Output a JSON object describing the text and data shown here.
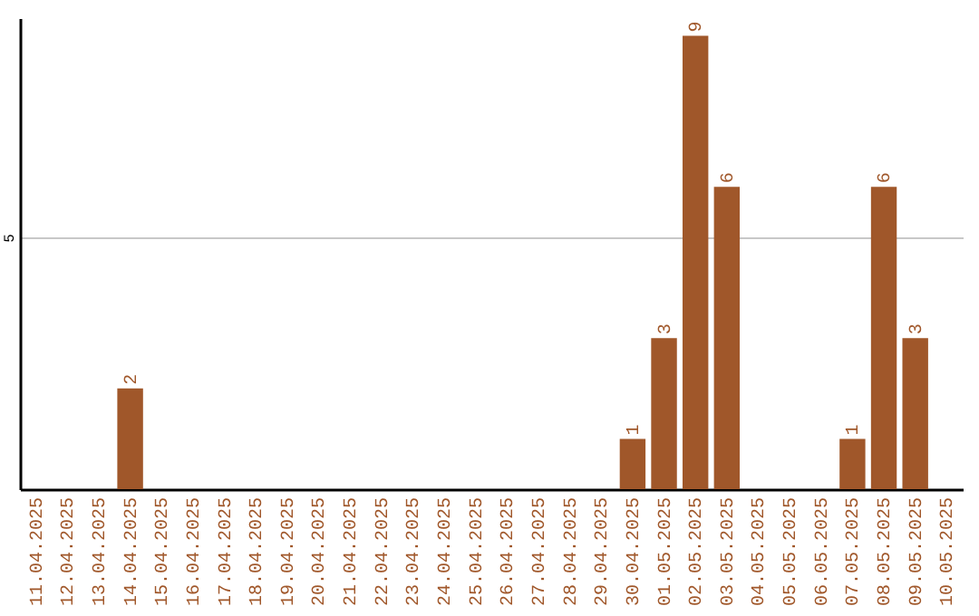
{
  "chart_data": {
    "type": "bar",
    "categories": [
      "11.04.2025",
      "12.04.2025",
      "13.04.2025",
      "14.04.2025",
      "15.04.2025",
      "16.04.2025",
      "17.04.2025",
      "18.04.2025",
      "19.04.2025",
      "20.04.2025",
      "21.04.2025",
      "22.04.2025",
      "23.04.2025",
      "24.04.2025",
      "25.04.2025",
      "26.04.2025",
      "27.04.2025",
      "28.04.2025",
      "29.04.2025",
      "30.04.2025",
      "01.05.2025",
      "02.05.2025",
      "03.05.2025",
      "04.05.2025",
      "05.05.2025",
      "06.05.2025",
      "07.05.2025",
      "08.05.2025",
      "09.05.2025",
      "10.05.2025"
    ],
    "values": [
      0,
      0,
      0,
      2,
      0,
      0,
      0,
      0,
      0,
      0,
      0,
      0,
      0,
      0,
      0,
      0,
      0,
      0,
      0,
      1,
      3,
      9,
      6,
      0,
      0,
      0,
      1,
      6,
      3,
      0
    ],
    "value_labels": [
      null,
      null,
      null,
      "2",
      null,
      null,
      null,
      null,
      null,
      null,
      null,
      null,
      null,
      null,
      null,
      null,
      null,
      null,
      null,
      "1",
      "3",
      "9",
      "6",
      null,
      null,
      null,
      "1",
      "6",
      "3",
      null
    ],
    "color": "#a0572a",
    "ylim": [
      0,
      9.35
    ],
    "yticks": [
      5
    ],
    "grid": "y"
  }
}
